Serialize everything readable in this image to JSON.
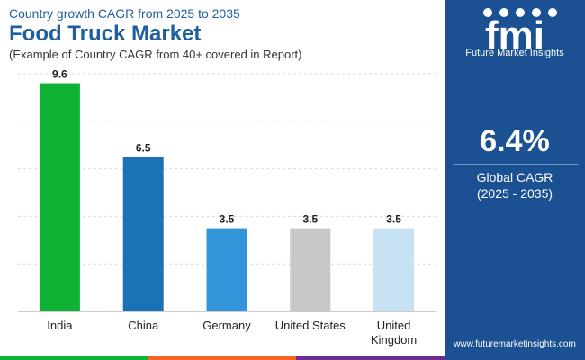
{
  "header": {
    "subtitle": "Country growth CAGR from 2025 to 2035",
    "title": "Food Truck Market",
    "note": "(Example of Country CAGR from 40+ covered in Report)"
  },
  "chart_data": {
    "type": "bar",
    "categories": [
      "India",
      "China",
      "Germany",
      "United States",
      "United Kingdom"
    ],
    "values": [
      9.6,
      6.5,
      3.5,
      3.5,
      3.5
    ],
    "colors": [
      "#10b236",
      "#1b72b5",
      "#3395d9",
      "#c8c8c8",
      "#c6e2f4"
    ],
    "ylim": [
      0,
      10
    ],
    "grid": true,
    "title": "",
    "xlabel": "",
    "ylabel": ""
  },
  "side_panel": {
    "logo_text": "fmi",
    "brand_name": "Future Market Insights",
    "cagr_value": "6.4%",
    "cagr_label": "Global CAGR",
    "cagr_period": "(2025 - 2035)",
    "website": "www.futuremarketinsights.com"
  },
  "bottom_bar_colors": [
    "#10b236",
    "#f26522",
    "#6b2c91"
  ],
  "accent_color": "#1f5fa0"
}
